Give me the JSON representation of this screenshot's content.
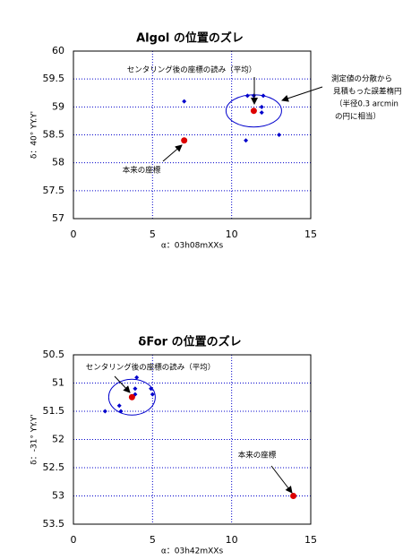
{
  "chart_data": [
    {
      "type": "scatter",
      "title": "Algol の位置のズレ",
      "x_label": "α：03h08mXXs",
      "y_label": "δ：40° YY.Y'",
      "xlim": [
        0,
        15
      ],
      "xticks": [
        0,
        5,
        10,
        15
      ],
      "ylim": [
        57,
        60
      ],
      "yticks": [
        57,
        57.5,
        58,
        58.5,
        59,
        59.5,
        60
      ],
      "grid": true,
      "series": [
        {
          "color": "#0000cc",
          "marker": "diamond",
          "x": [
            7,
            11,
            11.4,
            12,
            11.9,
            11.9,
            10.9,
            13
          ],
          "y": [
            59.1,
            59.2,
            59.2,
            59.2,
            59.0,
            58.9,
            58.4,
            58.5
          ]
        },
        {
          "color": "#dd0000",
          "marker": "circle",
          "x": [
            11.4
          ],
          "y": [
            58.93
          ]
        },
        {
          "color": "#dd0000",
          "marker": "circle",
          "x": [
            7
          ],
          "y": [
            58.4
          ]
        }
      ],
      "annotations": [
        "センタリング後の座標の読み（平均）",
        "測定値の分散から",
        "見積もった誤差楕円",
        "（半径0.3 arcmin",
        "の円に相当）",
        "本来の座標"
      ]
    },
    {
      "type": "scatter",
      "title": "δFor の位置のズレ",
      "x_label": "α：03h42mXXs",
      "y_label": "δ：-31° YY.Y'",
      "xlim": [
        0,
        15
      ],
      "xticks": [
        0,
        5,
        10,
        15
      ],
      "ylim": [
        50.5,
        53.5
      ],
      "y_inverted": true,
      "yticks": [
        50.5,
        51,
        51.5,
        52,
        52.5,
        53,
        53.5
      ],
      "grid": true,
      "series": [
        {
          "color": "#0000cc",
          "marker": "diamond",
          "x": [
            4,
            3.9,
            3.9,
            4.9,
            5,
            2.9,
            2,
            3
          ],
          "y": [
            50.9,
            51.1,
            51.2,
            51.1,
            51.2,
            51.4,
            51.5,
            51.5
          ]
        },
        {
          "color": "#dd0000",
          "marker": "circle",
          "x": [
            3.7
          ],
          "y": [
            51.25
          ]
        },
        {
          "color": "#dd0000",
          "marker": "circle",
          "x": [
            13.9
          ],
          "y": [
            53
          ]
        }
      ],
      "annotations": [
        "センタリング後の座標の読み（平均）",
        "本来の座標"
      ]
    }
  ]
}
